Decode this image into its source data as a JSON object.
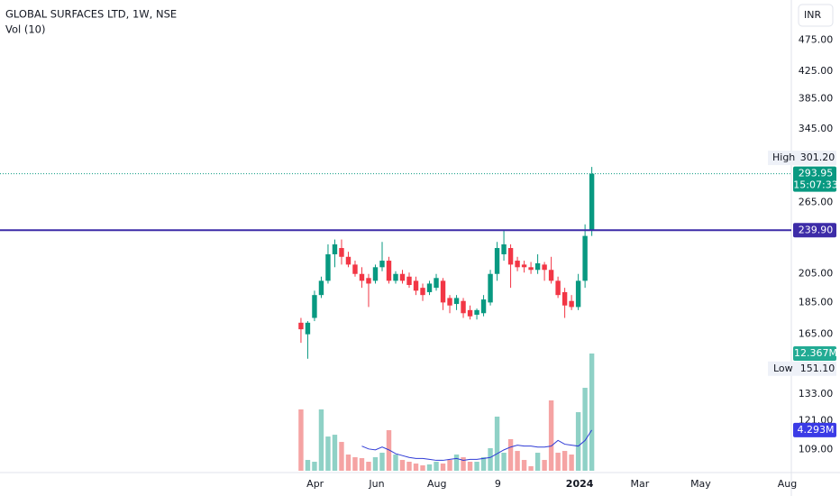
{
  "chart_data": {
    "type": "candlestick",
    "title": "GLOBAL SURFACES LTD, 1W, NSE",
    "indicator_title": "Vol (10)",
    "currency": "INR",
    "log_scale": true,
    "ylim": [
      101,
      549
    ],
    "yticks": [
      {
        "value": 475,
        "label": "475.00"
      },
      {
        "value": 425,
        "label": "425.00"
      },
      {
        "value": 385,
        "label": "385.00"
      },
      {
        "value": 345,
        "label": "345.00"
      },
      {
        "value": 265,
        "label": "265.00"
      },
      {
        "value": 205,
        "label": "205.00"
      },
      {
        "value": 185,
        "label": "185.00"
      },
      {
        "value": 165,
        "label": "165.00"
      },
      {
        "value": 133,
        "label": "133.00"
      },
      {
        "value": 121,
        "label": "121.00"
      },
      {
        "value": 109,
        "label": "109.00"
      }
    ],
    "xlim": [
      -44.5,
      72.5
    ],
    "xticks": [
      {
        "value": 2.1,
        "label": "Apr"
      },
      {
        "value": 11.2,
        "label": "Jun"
      },
      {
        "value": 20.1,
        "label": "Aug"
      },
      {
        "value": 29.1,
        "label": "9"
      },
      {
        "value": 41.2,
        "label": "2024"
      },
      {
        "value": 50.1,
        "label": "Mar"
      },
      {
        "value": 59.1,
        "label": "May"
      },
      {
        "value": 71.9,
        "label": "Aug"
      }
    ],
    "up_color": "#089981",
    "down_color": "#f23645",
    "open": [
      172,
      165,
      175,
      190,
      200,
      220,
      225,
      218,
      212,
      205,
      202,
      200,
      210,
      215,
      200,
      205,
      203,
      200,
      195,
      192,
      195,
      200,
      188,
      184,
      186,
      180,
      177,
      178,
      185,
      205,
      220,
      225,
      215,
      212,
      210,
      208,
      212,
      208,
      200,
      192,
      186,
      182,
      200,
      240
    ],
    "high": [
      175,
      173,
      193,
      203,
      228,
      232,
      232,
      222,
      215,
      210,
      205,
      212,
      230,
      218,
      207,
      208,
      206,
      203,
      198,
      200,
      205,
      202,
      190,
      190,
      188,
      183,
      181,
      190,
      208,
      230,
      240,
      228,
      218,
      215,
      214,
      220,
      214,
      218,
      203,
      195,
      190,
      205,
      245,
      301.2
    ],
    "low": [
      160,
      151.1,
      173,
      188,
      198,
      210,
      212,
      210,
      203,
      195,
      182,
      198,
      207,
      198,
      198,
      198,
      195,
      190,
      186,
      190,
      193,
      180,
      178,
      180,
      175,
      174,
      174,
      176,
      183,
      200,
      215,
      195,
      207,
      206,
      205,
      205,
      200,
      198,
      188,
      175,
      180,
      180,
      195,
      235
    ],
    "close": [
      168,
      172,
      190,
      200,
      220,
      228,
      218,
      212,
      205,
      200,
      198,
      210,
      215,
      200,
      205,
      200,
      197,
      193,
      190,
      198,
      202,
      185,
      183,
      188,
      178,
      176,
      180,
      187,
      205,
      225,
      228,
      212,
      210,
      210,
      208,
      213,
      208,
      200,
      190,
      183,
      182,
      200,
      235,
      293.95
    ],
    "last_price": {
      "value": 293.95,
      "label": "293.95",
      "countdown": "15:07:33",
      "color": "#089981"
    },
    "high_marker": {
      "name": "High",
      "value": 301.2,
      "label": "301.20"
    },
    "low_marker": {
      "name": "Low",
      "value": 151.1,
      "label": "151.10"
    },
    "hline": {
      "value": 239.9,
      "label": "239.90",
      "color": "#3d2ca8"
    },
    "volume": {
      "ylim": [
        0,
        49.66
      ],
      "values": [
        6.47,
        1.14,
        0.95,
        6.47,
        3.61,
        3.8,
        3.04,
        1.71,
        1.43,
        1.33,
        0.95,
        1.43,
        1.9,
        4.28,
        1.71,
        1.14,
        0.95,
        0.76,
        0.57,
        0.67,
        0.95,
        0.76,
        1.14,
        1.71,
        1.43,
        0.95,
        0.95,
        1.43,
        2.38,
        5.71,
        1.9,
        3.33,
        2.09,
        1.14,
        0.48,
        1.9,
        1.14,
        7.42,
        1.9,
        2.09,
        1.71,
        6.18,
        8.75,
        12.367
      ],
      "value_labels": [
        null,
        null,
        null,
        null,
        null,
        null,
        null,
        null,
        null,
        null,
        null,
        null,
        null,
        null,
        null,
        null,
        null,
        null,
        null,
        null,
        null,
        null,
        null,
        null,
        null,
        null,
        null,
        null,
        null,
        null,
        null,
        null,
        null,
        null,
        null,
        null,
        null,
        null,
        null,
        null,
        null,
        null,
        null,
        "12.367M"
      ],
      "up_color": "#8fd1c6",
      "down_color": "#f5a3a3",
      "label_color": "#22ab94",
      "ma": {
        "color": "#2f3bd6",
        "label_color": "#3b3be6",
        "values": [
          null,
          null,
          null,
          null,
          null,
          null,
          null,
          null,
          null,
          2.6,
          2.3,
          2.2,
          2.5,
          2.2,
          1.8,
          1.6,
          1.4,
          1.3,
          1.3,
          1.2,
          1.1,
          1.1,
          1.2,
          1.3,
          1.1,
          1.2,
          1.2,
          1.3,
          1.4,
          1.8,
          2.2,
          2.5,
          2.7,
          2.6,
          2.6,
          2.5,
          2.5,
          2.6,
          3.2,
          2.8,
          2.7,
          2.6,
          3.2,
          4.293
        ],
        "last_label": "4.293M"
      }
    }
  }
}
